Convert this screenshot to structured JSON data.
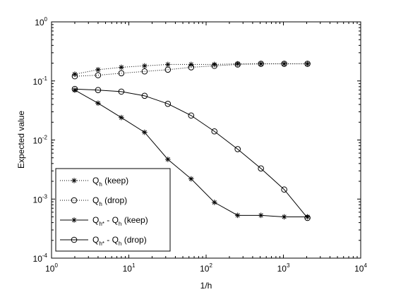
{
  "chart_data": {
    "type": "line",
    "title": "",
    "xlabel": "1/h",
    "ylabel": "Expected value",
    "x_scale": "log",
    "y_scale": "log",
    "xlim": [
      1,
      10000
    ],
    "ylim": [
      0.0001,
      1
    ],
    "grid": false,
    "legend_position": "bottom-left",
    "x_ticks": [
      {
        "base": "10",
        "exp": "0",
        "value": 1
      },
      {
        "base": "10",
        "exp": "1",
        "value": 10
      },
      {
        "base": "10",
        "exp": "2",
        "value": 100
      },
      {
        "base": "10",
        "exp": "3",
        "value": 1000
      },
      {
        "base": "10",
        "exp": "4",
        "value": 10000
      }
    ],
    "y_ticks": [
      {
        "base": "10",
        "exp": "0",
        "value": 1
      },
      {
        "base": "10",
        "exp": "-1",
        "value": 0.1
      },
      {
        "base": "10",
        "exp": "-2",
        "value": 0.01
      },
      {
        "base": "10",
        "exp": "-3",
        "value": 0.001
      },
      {
        "base": "10",
        "exp": "-4",
        "value": 0.0001
      }
    ],
    "x": [
      2,
      4,
      8,
      16,
      32,
      64,
      128,
      256,
      512,
      1024,
      2048
    ],
    "series": [
      {
        "name": "Q_h (keep)",
        "legend_main": "Q",
        "legend_sub": "h",
        "legend_rest": " (keep)",
        "line_style": "dotted",
        "marker": "star",
        "color": "#000000",
        "values": [
          0.13,
          0.155,
          0.17,
          0.18,
          0.19,
          0.19,
          0.19,
          0.195,
          0.195,
          0.195,
          0.195
        ]
      },
      {
        "name": "Q_h (drop)",
        "legend_main": "Q",
        "legend_sub": "h",
        "legend_rest": " (drop)",
        "line_style": "dotted",
        "marker": "circle",
        "color": "#000000",
        "values": [
          0.12,
          0.125,
          0.135,
          0.145,
          0.155,
          0.17,
          0.18,
          0.19,
          0.195,
          0.195,
          0.195
        ]
      },
      {
        "name": "Q_h* - Q_h (keep)",
        "legend_main": "Q",
        "legend_sub": "h*",
        "legend_mid": " - Q",
        "legend_sub2": "h",
        "legend_rest": " (keep)",
        "line_style": "solid",
        "marker": "star",
        "color": "#000000",
        "values": [
          0.07,
          0.042,
          0.024,
          0.0135,
          0.0047,
          0.0022,
          0.00088,
          0.00053,
          0.00053,
          0.0005,
          0.0005
        ]
      },
      {
        "name": "Q_h* - Q_h (drop)",
        "legend_main": "Q",
        "legend_sub": "h*",
        "legend_mid": " - Q",
        "legend_sub2": "h",
        "legend_rest": " (drop)",
        "line_style": "solid",
        "marker": "circle",
        "color": "#000000",
        "values": [
          0.073,
          0.07,
          0.066,
          0.056,
          0.041,
          0.026,
          0.014,
          0.007,
          0.0033,
          0.00145,
          0.00048
        ]
      }
    ]
  }
}
